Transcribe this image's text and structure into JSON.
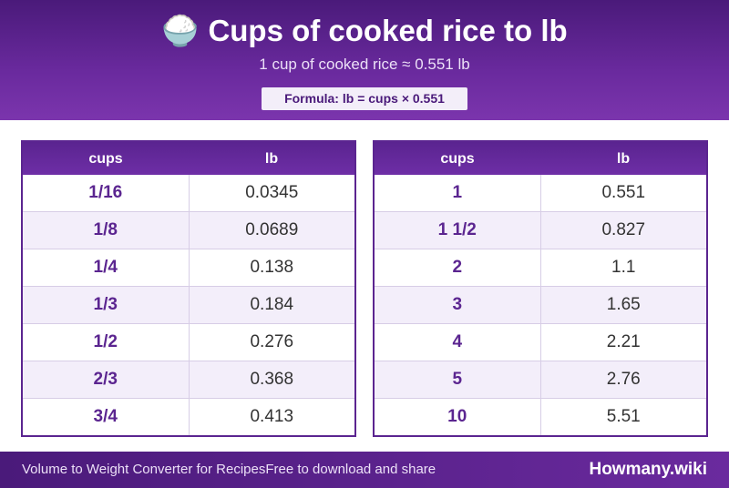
{
  "header": {
    "icon": "rice-bowl-icon",
    "emoji": "🍚",
    "title": "Cups of cooked rice to lb",
    "subtitle": "1 cup of cooked rice ≈ 0.551 lb",
    "formula": "Formula: lb = cups × 0.551"
  },
  "columns": {
    "cups": "cups",
    "lb": "lb"
  },
  "left_table": [
    {
      "cups": "1/16",
      "lb": "0.0345"
    },
    {
      "cups": "1/8",
      "lb": "0.0689"
    },
    {
      "cups": "1/4",
      "lb": "0.138"
    },
    {
      "cups": "1/3",
      "lb": "0.184"
    },
    {
      "cups": "1/2",
      "lb": "0.276"
    },
    {
      "cups": "2/3",
      "lb": "0.368"
    },
    {
      "cups": "3/4",
      "lb": "0.413"
    }
  ],
  "right_table": [
    {
      "cups": "1",
      "lb": "0.551"
    },
    {
      "cups": "1 1/2",
      "lb": "0.827"
    },
    {
      "cups": "2",
      "lb": "1.1"
    },
    {
      "cups": "3",
      "lb": "1.65"
    },
    {
      "cups": "4",
      "lb": "2.21"
    },
    {
      "cups": "5",
      "lb": "2.76"
    },
    {
      "cups": "10",
      "lb": "5.51"
    }
  ],
  "footer": {
    "left_text_1": "Volume to Weight Converter for Recipes",
    "left_text_2": "Free to download and share",
    "brand": "Howmany.wiki"
  }
}
